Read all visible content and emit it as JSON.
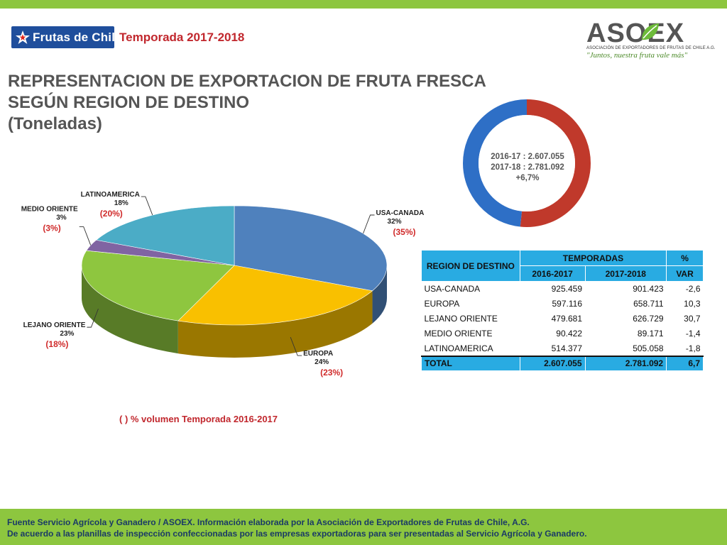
{
  "header": {
    "brand_text": "Frutas de Chile",
    "season": "Temporada 2017-2018",
    "asoex_word": "ASOEX",
    "asoex_subtitle": "ASOCIACIÓN DE EXPORTADORES DE FRUTAS DE CHILE A.G.",
    "asoex_tagline": "\"Juntos, nuestra fruta vale más\""
  },
  "title": {
    "line1": "REPRESENTACION DE EXPORTACION DE FRUTA FRESCA",
    "line2": "SEGÚN REGION DE DESTINO",
    "line3": "(Toneladas)"
  },
  "chart_note": "( ) % volumen Temporada 2016-2017",
  "donut": {
    "line1": "2016-17 : 2.607.055",
    "line2": "2017-18 : 2.781.092",
    "line3": "+6,7%"
  },
  "table": {
    "header_region": "REGION DE DESTINO",
    "header_seasons": "TEMPORADAS",
    "header_pct": "%",
    "header_2016": "2016-2017",
    "header_2017": "2017-2018",
    "header_var": "VAR",
    "rows": [
      {
        "region": "USA-CANADA",
        "v2016": "925.459",
        "v2017": "901.423",
        "var": "-2,6"
      },
      {
        "region": "EUROPA",
        "v2016": "597.116",
        "v2017": "658.711",
        "var": "10,3"
      },
      {
        "region": "LEJANO ORIENTE",
        "v2016": "479.681",
        "v2017": "626.729",
        "var": "30,7"
      },
      {
        "region": "MEDIO ORIENTE",
        "v2016": "90.422",
        "v2017": "89.171",
        "var": "-1,4"
      },
      {
        "region": "LATINOAMERICA",
        "v2016": "514.377",
        "v2017": "505.058",
        "var": "-1,8"
      }
    ],
    "total": {
      "region": "TOTAL",
      "v2016": "2.607.055",
      "v2017": "2.781.092",
      "var": "6,7"
    }
  },
  "footer": {
    "line1": "Fuente Servicio Agrícola y Ganadero / ASOEX. Información elaborada por la Asociación de Exportadores de  Frutas de Chile, A.G.",
    "line2": "De acuerdo a las planillas de inspección confeccionadas por las empresas exportadoras  para ser presentadas al Servicio Agrícola y Ganadero."
  },
  "colors": {
    "green": "#8dc63f",
    "accent_red": "#c1272d",
    "table_blue": "#29abe2"
  },
  "chart_data": [
    {
      "type": "pie",
      "title": "",
      "slices": [
        {
          "name": "USA-CANADA",
          "value": 32,
          "label": "32%",
          "previous": "(35%)",
          "color": "#4f81bd"
        },
        {
          "name": "EUROPA",
          "value": 24,
          "label": "24%",
          "previous": "(23%)",
          "color": "#f9c000"
        },
        {
          "name": "LEJANO ORIENTE",
          "value": 23,
          "label": "23%",
          "previous": "(18%)",
          "color": "#8ec63f"
        },
        {
          "name": "MEDIO ORIENTE",
          "value": 3,
          "label": "3%",
          "previous": "(3%)",
          "color": "#8064a2"
        },
        {
          "name": "LATINOAMERICA",
          "value": 18,
          "label": "18%",
          "previous": "(20%)",
          "color": "#4bacc6"
        }
      ]
    },
    {
      "type": "pie",
      "title": "",
      "slices": [
        {
          "name": "2017-18",
          "value": 2781092,
          "color": "#c0392b"
        },
        {
          "name": "2016-17",
          "value": 2607055,
          "color": "#2e6fc6"
        }
      ]
    }
  ]
}
